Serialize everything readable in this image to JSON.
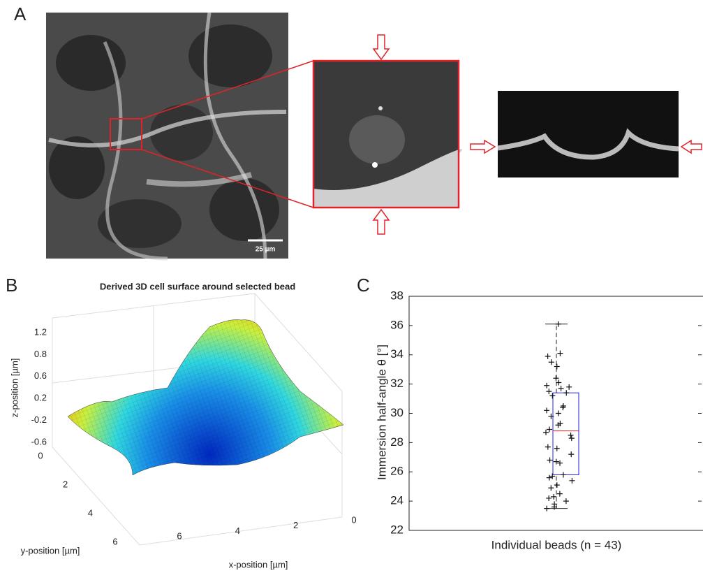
{
  "panel_a": {
    "label": "A",
    "scale_bar": "25 µm"
  },
  "panel_b": {
    "label": "B",
    "title": "Derived 3D cell surface around selected bead",
    "zlabel": "z-position [µm]",
    "ylabel": "y-position [µm]",
    "xlabel": "x-position [µm]",
    "zticks": [
      1.2,
      0.8,
      0.6,
      0.2,
      -0.2,
      -0.6
    ],
    "yticks": [
      0,
      2,
      4,
      6
    ],
    "xticks": [
      0,
      2,
      4,
      6
    ]
  },
  "panel_c": {
    "label": "C",
    "type": "box",
    "ylabel": "Immersion half-angle θ [°]",
    "xlabel": "Individual beads (n = 43)",
    "ylim": [
      22,
      38
    ],
    "yticks": [
      22,
      24,
      26,
      28,
      30,
      32,
      34,
      36,
      38
    ],
    "box": {
      "whisker_low": 23.5,
      "q1": 25.8,
      "median": 28.8,
      "q3": 31.4,
      "whisker_high": 36.1
    },
    "points": [
      36.1,
      34.1,
      33.9,
      33.5,
      33.2,
      32.1,
      31.9,
      31.8,
      31.7,
      32.4,
      31.2,
      31.4,
      30.4,
      30.2,
      30.0,
      29.8,
      30.5,
      31.5,
      29.3,
      29.2,
      28.9,
      28.7,
      28.5,
      28.3,
      27.7,
      27.6,
      27.2,
      26.8,
      26.7,
      26.6,
      25.8,
      25.7,
      25.6,
      25.4,
      25.1,
      24.9,
      24.5,
      24.3,
      24.2,
      24.0,
      23.8,
      23.6,
      23.5
    ]
  }
}
